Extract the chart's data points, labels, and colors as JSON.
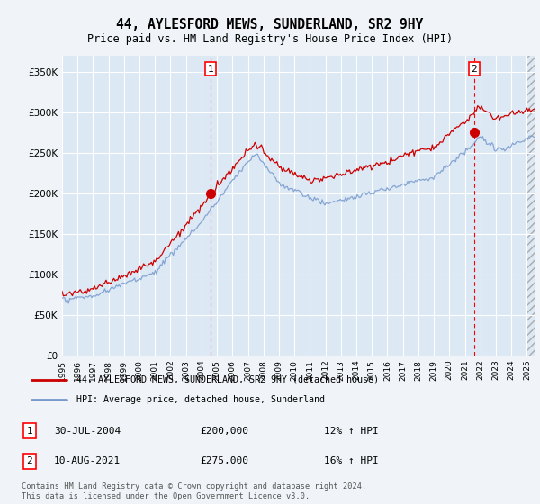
{
  "title": "44, AYLESFORD MEWS, SUNDERLAND, SR2 9HY",
  "subtitle": "Price paid vs. HM Land Registry's House Price Index (HPI)",
  "bg_color": "#dce9f5",
  "fig_bg_color": "#f0f4f8",
  "ytick_vals": [
    0,
    50000,
    100000,
    150000,
    200000,
    250000,
    300000,
    350000
  ],
  "ylim": [
    0,
    370000
  ],
  "xlim_start": 1995.0,
  "xlim_end": 2025.5,
  "marker1_x": 2004.58,
  "marker1_y": 200000,
  "marker1_label": "1",
  "marker2_x": 2021.6,
  "marker2_y": 275000,
  "marker2_label": "2",
  "annotation1_date": "30-JUL-2004",
  "annotation1_price": "£200,000",
  "annotation1_hpi": "12% ↑ HPI",
  "annotation2_date": "10-AUG-2021",
  "annotation2_price": "£275,000",
  "annotation2_hpi": "16% ↑ HPI",
  "legend_line1": "44, AYLESFORD MEWS, SUNDERLAND, SR2 9HY (detached house)",
  "legend_line2": "HPI: Average price, detached house, Sunderland",
  "footer": "Contains HM Land Registry data © Crown copyright and database right 2024.\nThis data is licensed under the Open Government Licence v3.0.",
  "line_color_red": "#cc0000",
  "line_color_blue": "#7799cc"
}
